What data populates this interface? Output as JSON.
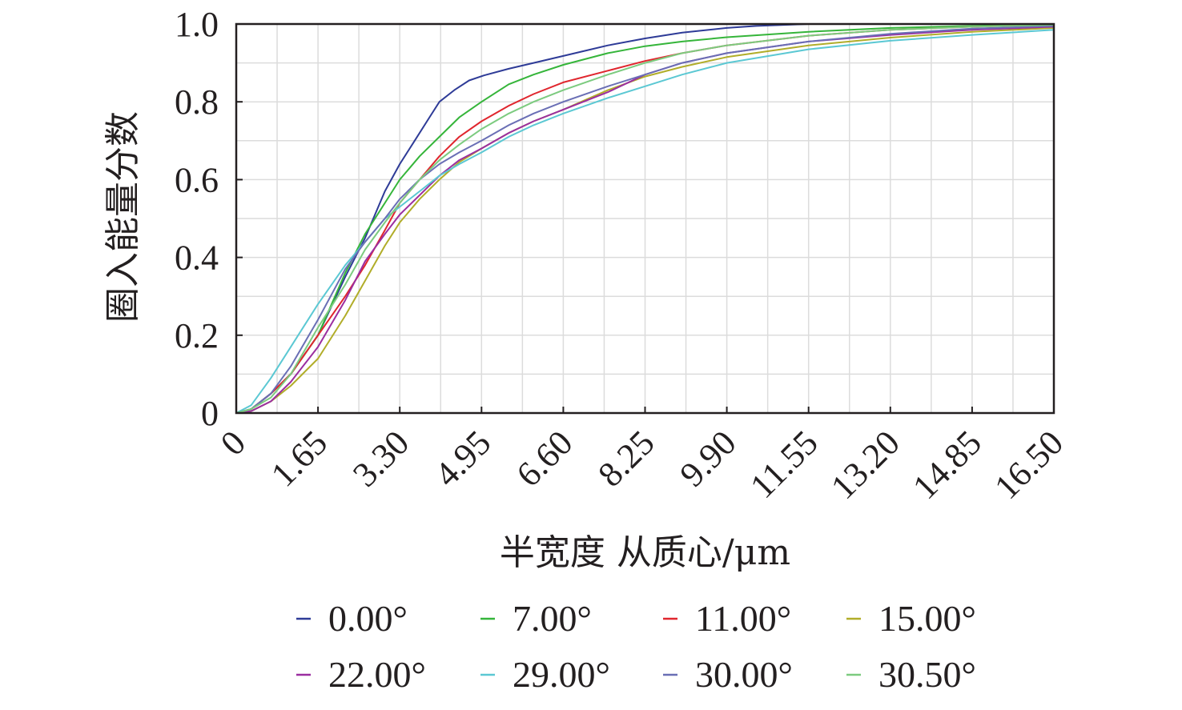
{
  "chart_data": {
    "type": "line",
    "xlabel": "半宽度 从质心/μm",
    "ylabel": "圈入能量分数",
    "xlim": [
      0,
      16.5
    ],
    "ylim": [
      0,
      1.0
    ],
    "x_ticks": [
      "0",
      "1.65",
      "3.30",
      "4.95",
      "6.60",
      "8.25",
      "9.90",
      "11.55",
      "13.20",
      "14.85",
      "16.50"
    ],
    "y_ticks": [
      "0",
      "0.2",
      "0.4",
      "0.6",
      "0.8",
      "1.0"
    ],
    "grid": true,
    "legend_position": "bottom",
    "series": [
      {
        "name": "0.00°",
        "color": "#2e3b97",
        "x": [
          0,
          0.3,
          0.7,
          1.1,
          1.65,
          2.2,
          2.6,
          3.0,
          3.3,
          3.6,
          3.9,
          4.1,
          4.4,
          4.7,
          5.0,
          5.5,
          6.0,
          6.6,
          7.0,
          7.5,
          8.25,
          9.0,
          9.9,
          10.5,
          11.55,
          13.2,
          16.5
        ],
        "y": [
          0,
          0.01,
          0.05,
          0.1,
          0.2,
          0.35,
          0.45,
          0.57,
          0.64,
          0.7,
          0.76,
          0.8,
          0.83,
          0.855,
          0.868,
          0.885,
          0.9,
          0.918,
          0.93,
          0.945,
          0.963,
          0.978,
          0.99,
          0.995,
          1.0,
          1.0,
          1.0
        ]
      },
      {
        "name": "7.00°",
        "color": "#35b53a",
        "x": [
          0,
          0.3,
          0.7,
          1.1,
          1.65,
          2.2,
          2.6,
          3.0,
          3.3,
          3.7,
          4.1,
          4.5,
          4.95,
          5.5,
          6.0,
          6.6,
          7.5,
          8.25,
          9.0,
          9.9,
          11.55,
          13.2,
          14.85,
          16.5
        ],
        "y": [
          0,
          0.01,
          0.05,
          0.1,
          0.2,
          0.36,
          0.46,
          0.54,
          0.6,
          0.66,
          0.71,
          0.76,
          0.8,
          0.845,
          0.87,
          0.895,
          0.925,
          0.943,
          0.955,
          0.966,
          0.98,
          0.99,
          0.995,
          1.0
        ]
      },
      {
        "name": "11.00°",
        "color": "#e0262e",
        "x": [
          0,
          0.3,
          0.7,
          1.1,
          1.65,
          2.2,
          2.6,
          3.0,
          3.3,
          3.7,
          4.1,
          4.5,
          4.95,
          5.5,
          6.0,
          6.6,
          7.5,
          8.25,
          9.0,
          9.9,
          11.55,
          13.2,
          14.85,
          16.5
        ],
        "y": [
          0,
          0.01,
          0.05,
          0.1,
          0.2,
          0.3,
          0.38,
          0.47,
          0.54,
          0.6,
          0.66,
          0.71,
          0.75,
          0.79,
          0.82,
          0.85,
          0.88,
          0.905,
          0.925,
          0.945,
          0.97,
          0.985,
          0.993,
          0.998
        ]
      },
      {
        "name": "15.00°",
        "color": "#b1ad29",
        "x": [
          0,
          0.3,
          0.7,
          1.1,
          1.65,
          2.2,
          2.6,
          3.0,
          3.3,
          3.7,
          4.1,
          4.5,
          4.95,
          5.5,
          6.0,
          6.6,
          7.5,
          8.25,
          9.0,
          9.9,
          11.55,
          13.2,
          14.85,
          16.5
        ],
        "y": [
          0,
          0.005,
          0.03,
          0.07,
          0.14,
          0.25,
          0.34,
          0.43,
          0.49,
          0.55,
          0.6,
          0.645,
          0.68,
          0.72,
          0.75,
          0.78,
          0.83,
          0.865,
          0.89,
          0.915,
          0.945,
          0.965,
          0.98,
          0.99
        ]
      },
      {
        "name": "22.00°",
        "color": "#9b2ea0",
        "x": [
          0,
          0.3,
          0.7,
          1.1,
          1.65,
          2.2,
          2.6,
          3.0,
          3.3,
          3.7,
          4.1,
          4.5,
          4.95,
          5.5,
          6.0,
          6.6,
          7.5,
          8.25,
          9.0,
          9.9,
          11.55,
          13.2,
          14.85,
          16.5
        ],
        "y": [
          0,
          0.005,
          0.03,
          0.08,
          0.17,
          0.29,
          0.39,
          0.46,
          0.51,
          0.56,
          0.61,
          0.65,
          0.68,
          0.72,
          0.75,
          0.78,
          0.825,
          0.87,
          0.9,
          0.925,
          0.955,
          0.972,
          0.985,
          0.993
        ]
      },
      {
        "name": "29.00°",
        "color": "#5bc8d3",
        "x": [
          0,
          0.3,
          0.7,
          1.1,
          1.65,
          2.2,
          2.6,
          3.0,
          3.3,
          3.7,
          4.1,
          4.5,
          4.95,
          5.5,
          6.0,
          6.6,
          7.5,
          8.25,
          9.0,
          9.9,
          11.55,
          13.2,
          14.85,
          16.5
        ],
        "y": [
          0,
          0.02,
          0.09,
          0.17,
          0.28,
          0.38,
          0.44,
          0.5,
          0.53,
          0.57,
          0.61,
          0.64,
          0.67,
          0.71,
          0.74,
          0.77,
          0.81,
          0.84,
          0.87,
          0.9,
          0.935,
          0.957,
          0.972,
          0.985
        ]
      },
      {
        "name": "30.00°",
        "color": "#6a6fb5",
        "x": [
          0,
          0.3,
          0.7,
          1.1,
          1.65,
          2.2,
          2.6,
          3.0,
          3.3,
          3.7,
          4.1,
          4.5,
          4.95,
          5.5,
          6.0,
          6.6,
          7.5,
          8.25,
          9.0,
          9.9,
          11.55,
          13.2,
          14.85,
          16.5
        ],
        "y": [
          0,
          0.01,
          0.05,
          0.12,
          0.24,
          0.37,
          0.44,
          0.5,
          0.55,
          0.6,
          0.64,
          0.67,
          0.7,
          0.74,
          0.77,
          0.8,
          0.84,
          0.87,
          0.9,
          0.925,
          0.955,
          0.975,
          0.988,
          0.995
        ]
      },
      {
        "name": "30.50°",
        "color": "#7ccb7f",
        "x": [
          0,
          0.3,
          0.7,
          1.1,
          1.65,
          2.2,
          2.6,
          3.0,
          3.3,
          3.7,
          4.1,
          4.5,
          4.95,
          5.5,
          6.0,
          6.6,
          7.5,
          8.25,
          9.0,
          9.9,
          11.55,
          13.2,
          14.85,
          16.5
        ],
        "y": [
          0,
          0.01,
          0.04,
          0.1,
          0.22,
          0.33,
          0.42,
          0.49,
          0.54,
          0.6,
          0.65,
          0.69,
          0.73,
          0.77,
          0.8,
          0.83,
          0.87,
          0.9,
          0.925,
          0.945,
          0.97,
          0.985,
          0.993,
          0.998
        ]
      }
    ]
  }
}
